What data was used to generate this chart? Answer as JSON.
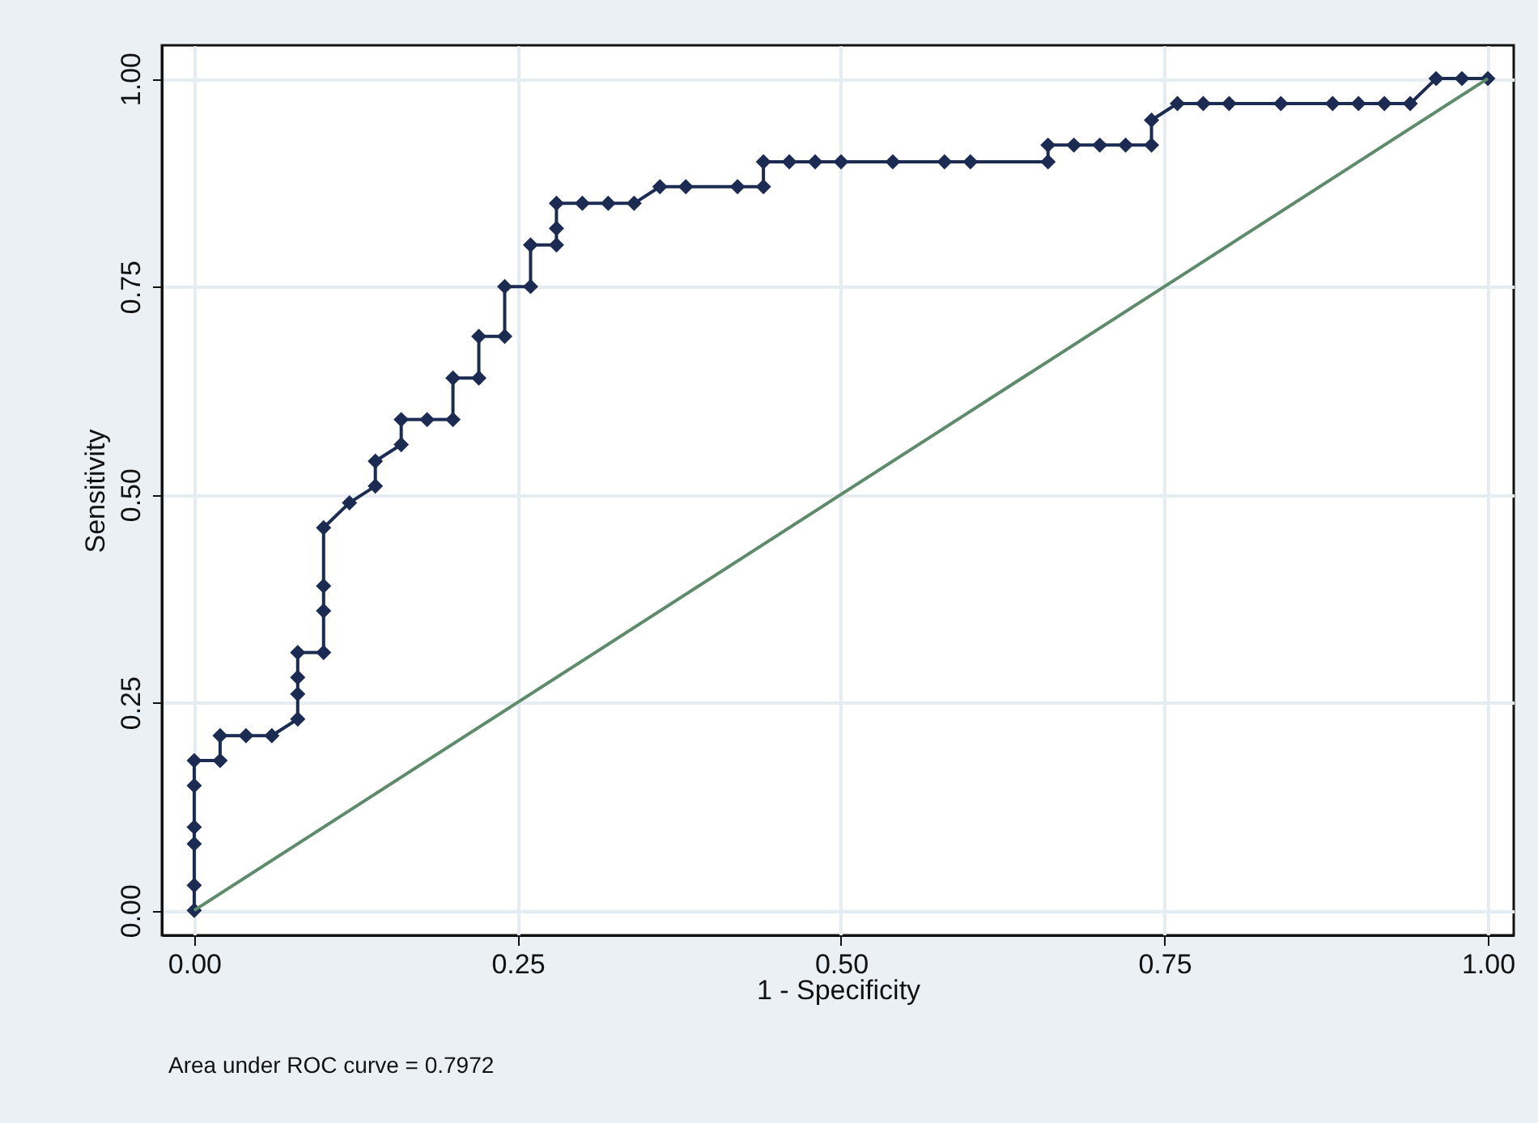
{
  "chart_data": {
    "type": "line",
    "xlabel": "1 - Specificity",
    "ylabel": "Sensitivity",
    "xlim": [
      -0.025,
      1.02
    ],
    "ylim": [
      -0.03,
      1.04
    ],
    "xticks": [
      {
        "value": 0,
        "label": "0.00"
      },
      {
        "value": 0.25,
        "label": "0.25"
      },
      {
        "value": 0.5,
        "label": "0.50"
      },
      {
        "value": 0.75,
        "label": "0.75"
      },
      {
        "value": 1,
        "label": "1.00"
      }
    ],
    "yticks": [
      {
        "value": 0,
        "label": "0.00"
      },
      {
        "value": 0.25,
        "label": "0.25"
      },
      {
        "value": 0.5,
        "label": "0.50"
      },
      {
        "value": 0.75,
        "label": "0.75"
      },
      {
        "value": 1,
        "label": "1.00"
      }
    ],
    "grid": true,
    "line_style": "solid",
    "annotations": [
      "Area under ROC curve = 0.7972"
    ],
    "series": [
      {
        "marker": "diamond",
        "color": "#1c2b52",
        "x": [
          0,
          0,
          0,
          0,
          0,
          0,
          0.02,
          0.02,
          0.04,
          0.06,
          0.08,
          0.08,
          0.08,
          0.08,
          0.1,
          0.1,
          0.1,
          0.1,
          0.12,
          0.14,
          0.14,
          0.16,
          0.16,
          0.18,
          0.2,
          0.2,
          0.22,
          0.22,
          0.24,
          0.24,
          0.26,
          0.26,
          0.28,
          0.28,
          0.28,
          0.3,
          0.32,
          0.34,
          0.36,
          0.38,
          0.42,
          0.44,
          0.44,
          0.46,
          0.48,
          0.5,
          0.54,
          0.58,
          0.6,
          0.66,
          0.66,
          0.68,
          0.7,
          0.72,
          0.74,
          0.74,
          0.76,
          0.78,
          0.8,
          0.84,
          0.88,
          0.9,
          0.92,
          0.94,
          0.96,
          0.98,
          1
        ],
        "values": [
          0,
          0.03,
          0.08,
          0.1,
          0.15,
          0.18,
          0.18,
          0.21,
          0.21,
          0.21,
          0.23,
          0.26,
          0.28,
          0.31,
          0.31,
          0.36,
          0.39,
          0.46,
          0.49,
          0.51,
          0.54,
          0.56,
          0.59,
          0.59,
          0.59,
          0.64,
          0.64,
          0.69,
          0.69,
          0.75,
          0.75,
          0.8,
          0.8,
          0.82,
          0.85,
          0.85,
          0.85,
          0.85,
          0.87,
          0.87,
          0.87,
          0.87,
          0.9,
          0.9,
          0.9,
          0.9,
          0.9,
          0.9,
          0.9,
          0.9,
          0.92,
          0.92,
          0.92,
          0.92,
          0.92,
          0.95,
          0.97,
          0.97,
          0.97,
          0.97,
          0.97,
          0.97,
          0.97,
          0.97,
          1,
          1,
          1
        ]
      },
      {
        "type": "line",
        "marker": "none",
        "color": "#5e8b6b",
        "x": [
          0,
          1
        ],
        "values": [
          0,
          1
        ]
      }
    ]
  }
}
